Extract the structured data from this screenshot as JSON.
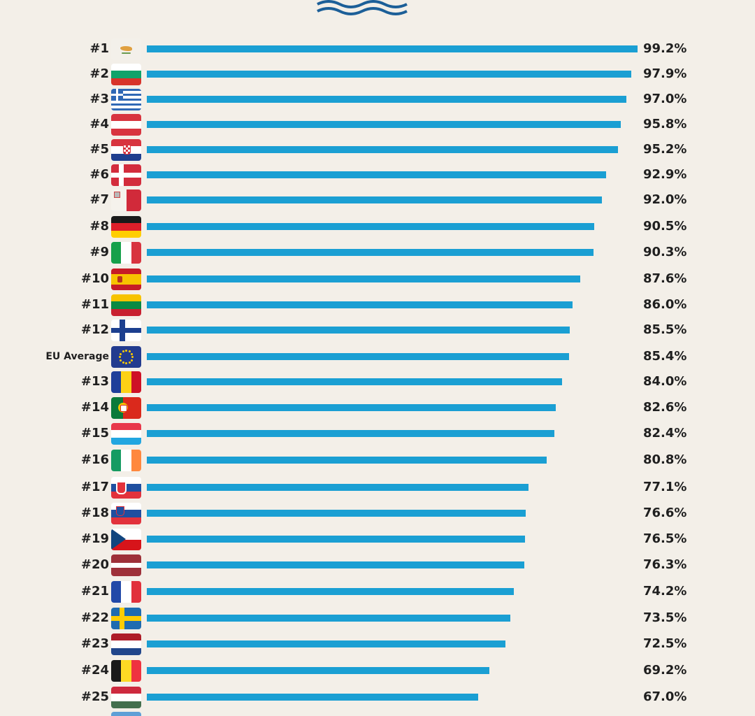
{
  "colors": {
    "background": "#f3efe8",
    "bar": "#1a9fd3",
    "logo": "#1c5f98"
  },
  "logo": {
    "icon": "waves-icon"
  },
  "chart_data": {
    "type": "bar",
    "orientation": "horizontal",
    "xlim": [
      0,
      100
    ],
    "grid": false,
    "unit": "%",
    "categories": [
      "#1",
      "#2",
      "#3",
      "#4",
      "#5",
      "#6",
      "#7",
      "#8",
      "#9",
      "#10",
      "#11",
      "#12",
      "EU Average",
      "#13",
      "#14",
      "#15",
      "#16",
      "#17",
      "#18",
      "#19",
      "#20",
      "#21",
      "#22",
      "#23",
      "#24",
      "#25"
    ],
    "flags": [
      "cyprus",
      "bulgaria",
      "greece",
      "austria",
      "croatia",
      "denmark",
      "malta",
      "germany",
      "italy",
      "spain",
      "lithuania",
      "finland",
      "eu",
      "romania",
      "portugal",
      "luxembourg",
      "ireland",
      "slovakia",
      "slovenia",
      "czechia",
      "latvia",
      "france",
      "sweden",
      "netherlands",
      "belgium",
      "hungary"
    ],
    "values": [
      99.2,
      97.9,
      97.0,
      95.8,
      95.2,
      92.9,
      92.0,
      90.5,
      90.3,
      87.6,
      86.0,
      85.5,
      85.4,
      84.0,
      82.6,
      82.4,
      80.8,
      77.1,
      76.6,
      76.5,
      76.3,
      74.2,
      73.5,
      72.5,
      69.2,
      67.0
    ],
    "value_labels": [
      "99.2%",
      "97.9%",
      "97.0%",
      "95.8%",
      "95.2%",
      "92.9%",
      "92.0%",
      "90.5%",
      "90.3%",
      "87.6%",
      "86.0%",
      "85.5%",
      "85.4%",
      "84.0%",
      "82.6%",
      "82.4%",
      "80.8%",
      "77.1%",
      "76.6%",
      "76.5%",
      "76.3%",
      "74.2%",
      "73.5%",
      "72.5%",
      "69.2%",
      "67.0%"
    ]
  }
}
